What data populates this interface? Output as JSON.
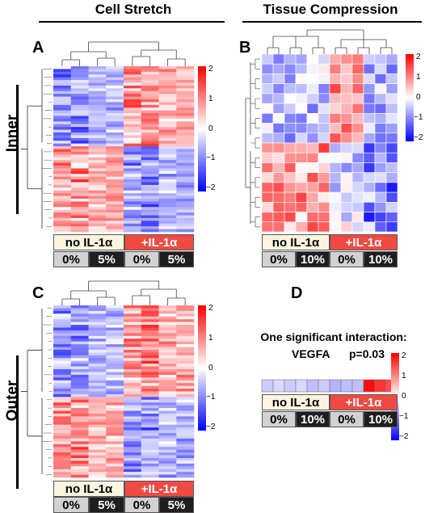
{
  "headers": {
    "left": "Cell Stretch",
    "right": "Tissue Compression"
  },
  "regions": {
    "inner": "Inner",
    "outer": "Outer"
  },
  "panels": {
    "A": {
      "letter": "A",
      "groups": [
        "no IL-1α",
        "+IL-1α"
      ],
      "conditions": [
        "0%",
        "5%",
        "0%",
        "5%"
      ]
    },
    "B": {
      "letter": "B",
      "groups": [
        "no IL-1α",
        "+IL-1α"
      ],
      "conditions": [
        "0%",
        "10%",
        "0%",
        "10%"
      ]
    },
    "C": {
      "letter": "C",
      "groups": [
        "no IL-1α",
        "+IL-1α"
      ],
      "conditions": [
        "0%",
        "5%",
        "0%",
        "5%"
      ]
    },
    "D": {
      "letter": "D",
      "groups": [
        "no IL-1α",
        "+IL-1α"
      ],
      "conditions": [
        "0%",
        "10%",
        "0%",
        "10%"
      ],
      "line1": "One significant interaction:",
      "gene": "VEGFA",
      "pvalue": "p=0.03"
    }
  },
  "colorbar": {
    "ticks": [
      "2",
      "1",
      "0",
      "−1",
      "−2"
    ],
    "max_color": "#ff0000",
    "mid_color": "#ffffff",
    "min_color": "#0000ff"
  },
  "chart_data": [
    {
      "type": "heatmap",
      "panel": "A",
      "columns": 8,
      "row_clusters": [
        "down with IL-1α",
        "up with IL-1α"
      ],
      "range": [
        -2,
        2
      ]
    },
    {
      "type": "heatmap",
      "panel": "B",
      "columns": 12,
      "rows": 18,
      "range": [
        -2,
        2
      ]
    },
    {
      "type": "heatmap",
      "panel": "C",
      "columns": 8,
      "range": [
        -2,
        2
      ]
    },
    {
      "type": "heatmap",
      "panel": "D",
      "columns": 12,
      "rows": 1,
      "range": [
        -2,
        2
      ],
      "values": [
        -0.4,
        -0.3,
        -0.4,
        -0.3,
        -0.5,
        -0.4,
        -0.6,
        -0.5,
        -0.5,
        1.9,
        1.6,
        1.4
      ]
    }
  ]
}
